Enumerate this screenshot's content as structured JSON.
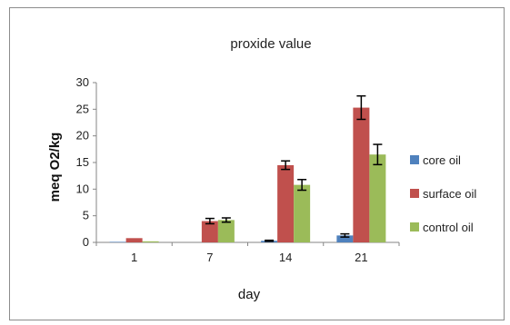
{
  "chart_data": {
    "type": "bar",
    "title": "proxide value",
    "xlabel": "day",
    "ylabel": "meq O2/kg",
    "categories": [
      "1",
      "7",
      "14",
      "21"
    ],
    "ylim": [
      0,
      30
    ],
    "yticks": [
      0,
      5,
      10,
      15,
      20,
      25,
      30
    ],
    "grid": false,
    "legend_position": "right",
    "series": [
      {
        "name": "core oil",
        "color": "#4f81bd",
        "values": [
          0.1,
          0,
          0.3,
          1.3
        ],
        "errors": [
          0,
          0,
          0.1,
          0.3
        ]
      },
      {
        "name": "surface oil",
        "color": "#c0504d",
        "values": [
          0.8,
          4.0,
          14.5,
          25.3
        ],
        "errors": [
          0,
          0.5,
          0.8,
          2.2
        ]
      },
      {
        "name": "control oil",
        "color": "#9bbb59",
        "values": [
          0.2,
          4.2,
          10.8,
          16.5
        ],
        "errors": [
          0,
          0.4,
          1.0,
          1.9
        ]
      }
    ]
  }
}
